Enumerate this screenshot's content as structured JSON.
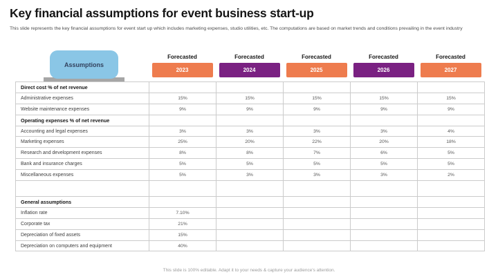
{
  "title": "Key financial assumptions for event business start-up",
  "subtitle": "This slide represents the key financial assumptions for event start up which includes marketing expenses, studio utilities, etc. The computations are based on market trends and conditions prevailing in the event industry",
  "footer": "This slide is 100% editable. Adapt it to your needs & capture your audience's attention.",
  "colors": {
    "orange": "#ee7c4e",
    "purple": "#7a2182",
    "blue": "#8ac6e6",
    "tab_base_gray": "#a6a6a6"
  },
  "table": {
    "corner_label": "Assumptions",
    "forecast_label": "Forecasted",
    "years": [
      {
        "label": "2023",
        "color": "orange"
      },
      {
        "label": "2024",
        "color": "purple"
      },
      {
        "label": "2025",
        "color": "orange"
      },
      {
        "label": "2026",
        "color": "purple"
      },
      {
        "label": "2027",
        "color": "orange"
      }
    ],
    "rows": [
      {
        "label": "Direct cost % of net revenue",
        "type": "section",
        "values": [
          "",
          "",
          "",
          "",
          ""
        ]
      },
      {
        "label": "Administrative expenses",
        "type": "data",
        "values": [
          "15%",
          "15%",
          "15%",
          "15%",
          "15%"
        ]
      },
      {
        "label": "Website maintenance  expenses",
        "type": "data",
        "values": [
          "9%",
          "9%",
          "9%",
          "9%",
          "9%"
        ]
      },
      {
        "label": "Operating expenses % of net revenue",
        "type": "section",
        "values": [
          "",
          "",
          "",
          "",
          ""
        ]
      },
      {
        "label": "Accounting and legal expenses",
        "type": "data",
        "values": [
          "3%",
          "3%",
          "3%",
          "3%",
          "4%"
        ]
      },
      {
        "label": "Marketing expenses",
        "type": "data",
        "values": [
          "25%",
          "20%",
          "22%",
          "20%",
          "18%"
        ]
      },
      {
        "label": "Research and development expenses",
        "type": "data",
        "values": [
          "8%",
          "8%",
          "7%",
          "6%",
          "5%"
        ]
      },
      {
        "label": "Bank and insurance charges",
        "type": "data",
        "values": [
          "5%",
          "5%",
          "5%",
          "5%",
          "5%"
        ]
      },
      {
        "label": "Miscellaneous expenses",
        "type": "data",
        "values": [
          "5%",
          "3%",
          "3%",
          "3%",
          "2%"
        ]
      },
      {
        "label": "",
        "type": "spacer",
        "values": [
          "",
          "",
          "",
          "",
          ""
        ]
      },
      {
        "label": "General assumptions",
        "type": "section",
        "values": [
          "",
          "",
          "",
          "",
          ""
        ]
      },
      {
        "label": "Inflation  rate",
        "type": "data",
        "values": [
          "7.10%",
          "",
          "",
          "",
          ""
        ]
      },
      {
        "label": "Corporate tax",
        "type": "data",
        "values": [
          "21%",
          "",
          "",
          "",
          ""
        ]
      },
      {
        "label": "Depreciation of fixed assets",
        "type": "data",
        "values": [
          "15%",
          "",
          "",
          "",
          ""
        ]
      },
      {
        "label": "Depreciation on computers  and equipment",
        "type": "data",
        "values": [
          "40%",
          "",
          "",
          "",
          ""
        ]
      }
    ]
  }
}
